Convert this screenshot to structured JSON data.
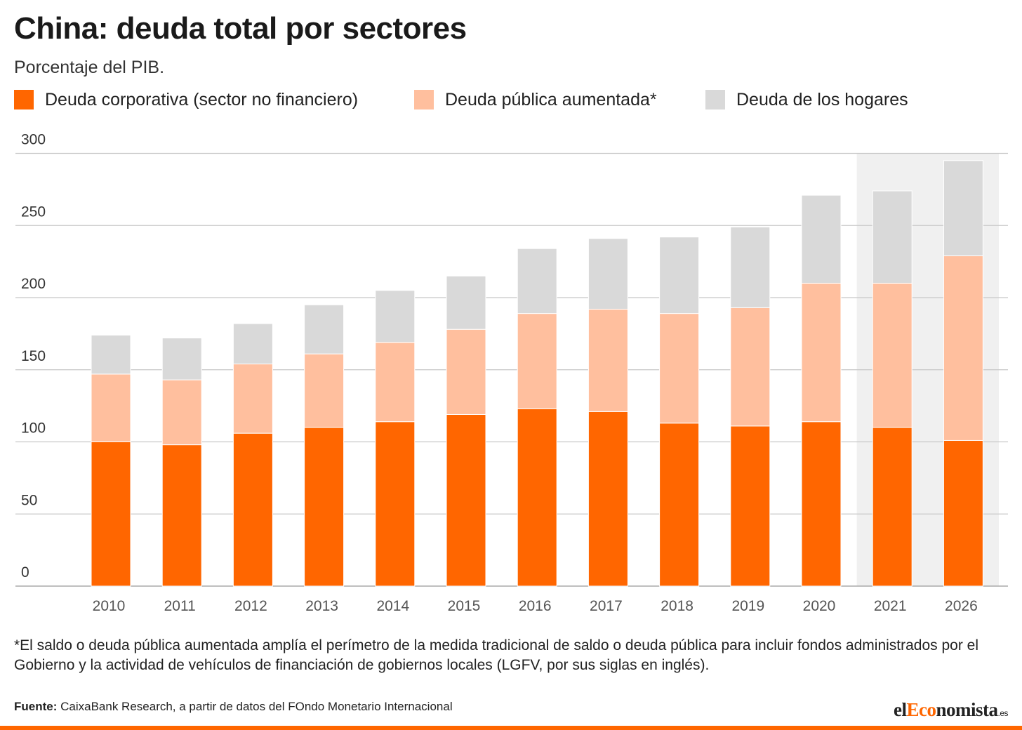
{
  "header": {
    "title": "China: deuda total por sectores",
    "subtitle": "Porcentaje del PIB."
  },
  "legend": [
    {
      "label": "Deuda corporativa (sector no financiero)",
      "color": "#ff6600"
    },
    {
      "label": "Deuda pública aumentada*",
      "color": "#ffbf9e"
    },
    {
      "label": "Deuda de los hogares",
      "color": "#d9d9d9"
    }
  ],
  "chart_data": {
    "type": "bar",
    "stacked": true,
    "categories": [
      "2010",
      "2011",
      "2012",
      "2013",
      "2014",
      "2015",
      "2016",
      "2017",
      "2018",
      "2019",
      "2020",
      "2021",
      "2026"
    ],
    "series": [
      {
        "name": "Deuda corporativa (sector no financiero)",
        "color": "#ff6600",
        "values": [
          100,
          98,
          106,
          110,
          114,
          119,
          123,
          121,
          113,
          111,
          114,
          110,
          101
        ]
      },
      {
        "name": "Deuda pública aumentada*",
        "color": "#ffbf9e",
        "values": [
          47,
          45,
          48,
          51,
          55,
          59,
          66,
          71,
          76,
          82,
          96,
          100,
          128
        ]
      },
      {
        "name": "Deuda de los hogares",
        "color": "#d9d9d9",
        "values": [
          27,
          29,
          28,
          34,
          36,
          37,
          45,
          49,
          53,
          56,
          61,
          64,
          66
        ]
      }
    ],
    "ylim": [
      0,
      300
    ],
    "yticks": [
      0,
      50,
      100,
      150,
      200,
      250,
      300
    ],
    "grid": true,
    "highlighted_categories": [
      "2021",
      "2026"
    ],
    "highlight_color": "#f0f0f0",
    "xlabel": "",
    "ylabel": ""
  },
  "footnote": "*El saldo o deuda pública aumentada amplía el perímetro de la medida tradicional de saldo o deuda pública para incluir fondos administrados por el Gobierno y la actividad de vehículos de financiación de gobiernos locales (LGFV, por sus siglas en inglés).",
  "source": {
    "label": "Fuente:",
    "text": " CaixaBank Research, a partir de datos del FOndo Monetario Internacional"
  },
  "logo": {
    "prefix": "el",
    "accent": "Eco",
    "suffix": "nomista",
    "tld": ".es"
  }
}
